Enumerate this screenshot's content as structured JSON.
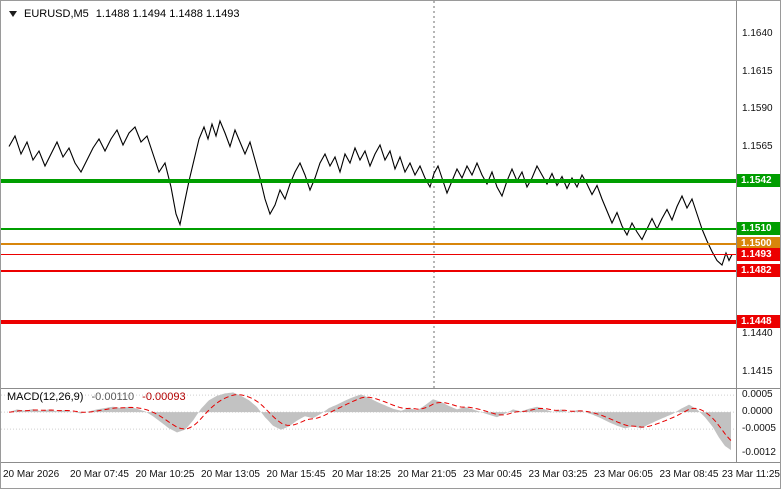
{
  "window": {
    "title_symbol": "EURUSD,M5",
    "ohlc": "1.1488 1.1494 1.1488 1.1493"
  },
  "colors": {
    "green": "#009E00",
    "red": "#EC0000",
    "orange": "#D8860B",
    "price_line": "#000000",
    "macd_hist": "#C2C2C2",
    "macd_signal": "#E60000",
    "grid": "#CFCFCF",
    "separator": "#6E6E6E",
    "border": "#8C8C8C"
  },
  "chart_data": {
    "type": "line",
    "title": "EURUSD,M5",
    "symbol": "EURUSD",
    "timeframe": "M5",
    "open": 1.1488,
    "high": 1.1494,
    "low": 1.1488,
    "close": 1.1493,
    "price_ylim": [
      1.1404,
      1.1662
    ],
    "y_ticks": [
      1.164,
      1.1615,
      1.159,
      1.1565,
      1.144,
      1.1415
    ],
    "levels": [
      {
        "price": 1.1542,
        "color": "green",
        "width": 4,
        "label": "1.1542"
      },
      {
        "price": 1.151,
        "color": "green",
        "width": 2,
        "label": "1.1510"
      },
      {
        "price": 1.15,
        "color": "orange",
        "width": 2,
        "label": "1.1500"
      },
      {
        "price": 1.1493,
        "color": "red",
        "width": 1,
        "label": "1.1493"
      },
      {
        "price": 1.1482,
        "color": "red",
        "width": 2,
        "label": "1.1482"
      },
      {
        "price": 1.1448,
        "color": "red",
        "width": 4,
        "label": "1.1448"
      }
    ],
    "day_separator_x": 433,
    "x_labels": [
      "20 Mar 2026",
      "20 Mar 07:45",
      "20 Mar 10:25",
      "20 Mar 13:05",
      "20 Mar 15:45",
      "20 Mar 18:25",
      "20 Mar 21:05",
      "23 Mar 00:45",
      "23 Mar 03:25",
      "23 Mar 06:05",
      "23 Mar 08:45",
      "23 Mar 11:25"
    ],
    "price_points": [
      [
        8,
        1.1565
      ],
      [
        14,
        1.1572
      ],
      [
        20,
        1.156
      ],
      [
        26,
        1.1568
      ],
      [
        32,
        1.1556
      ],
      [
        38,
        1.1562
      ],
      [
        44,
        1.1552
      ],
      [
        50,
        1.156
      ],
      [
        56,
        1.1568
      ],
      [
        62,
        1.1558
      ],
      [
        68,
        1.1564
      ],
      [
        74,
        1.1554
      ],
      [
        80,
        1.1548
      ],
      [
        86,
        1.1556
      ],
      [
        92,
        1.1564
      ],
      [
        98,
        1.157
      ],
      [
        104,
        1.1562
      ],
      [
        110,
        1.157
      ],
      [
        116,
        1.1576
      ],
      [
        122,
        1.1566
      ],
      [
        128,
        1.1574
      ],
      [
        134,
        1.1578
      ],
      [
        140,
        1.1568
      ],
      [
        146,
        1.1572
      ],
      [
        152,
        1.156
      ],
      [
        158,
        1.1548
      ],
      [
        164,
        1.1554
      ],
      [
        170,
        1.1538
      ],
      [
        175,
        1.152
      ],
      [
        179,
        1.1513
      ],
      [
        183,
        1.1526
      ],
      [
        188,
        1.1542
      ],
      [
        193,
        1.1556
      ],
      [
        198,
        1.157
      ],
      [
        203,
        1.1578
      ],
      [
        207,
        1.157
      ],
      [
        211,
        1.158
      ],
      [
        215,
        1.1572
      ],
      [
        219,
        1.1582
      ],
      [
        224,
        1.1574
      ],
      [
        229,
        1.1565
      ],
      [
        234,
        1.1576
      ],
      [
        239,
        1.1568
      ],
      [
        244,
        1.156
      ],
      [
        249,
        1.1568
      ],
      [
        254,
        1.1556
      ],
      [
        259,
        1.1544
      ],
      [
        264,
        1.153
      ],
      [
        269,
        1.152
      ],
      [
        274,
        1.1526
      ],
      [
        279,
        1.1536
      ],
      [
        284,
        1.153
      ],
      [
        289,
        1.154
      ],
      [
        294,
        1.1548
      ],
      [
        299,
        1.1554
      ],
      [
        304,
        1.1546
      ],
      [
        309,
        1.1536
      ],
      [
        314,
        1.1544
      ],
      [
        319,
        1.1554
      ],
      [
        324,
        1.156
      ],
      [
        329,
        1.1552
      ],
      [
        334,
        1.1558
      ],
      [
        339,
        1.1548
      ],
      [
        344,
        1.156
      ],
      [
        349,
        1.1554
      ],
      [
        354,
        1.1564
      ],
      [
        359,
        1.1556
      ],
      [
        364,
        1.1562
      ],
      [
        369,
        1.1552
      ],
      [
        374,
        1.156
      ],
      [
        379,
        1.1566
      ],
      [
        384,
        1.1556
      ],
      [
        389,
        1.1562
      ],
      [
        394,
        1.155
      ],
      [
        399,
        1.1558
      ],
      [
        404,
        1.1548
      ],
      [
        409,
        1.1554
      ],
      [
        414,
        1.1546
      ],
      [
        419,
        1.1552
      ],
      [
        424,
        1.1544
      ],
      [
        429,
        1.1538
      ],
      [
        433,
        1.1547
      ],
      [
        437,
        1.1552
      ],
      [
        441,
        1.1544
      ],
      [
        446,
        1.1534
      ],
      [
        451,
        1.1542
      ],
      [
        456,
        1.155
      ],
      [
        461,
        1.1544
      ],
      [
        466,
        1.1552
      ],
      [
        471,
        1.1546
      ],
      [
        476,
        1.1554
      ],
      [
        481,
        1.1546
      ],
      [
        486,
        1.154
      ],
      [
        491,
        1.1548
      ],
      [
        496,
        1.1538
      ],
      [
        501,
        1.1532
      ],
      [
        506,
        1.1542
      ],
      [
        511,
        1.155
      ],
      [
        516,
        1.1542
      ],
      [
        521,
        1.1548
      ],
      [
        526,
        1.1538
      ],
      [
        531,
        1.1544
      ],
      [
        536,
        1.1552
      ],
      [
        541,
        1.1546
      ],
      [
        546,
        1.154
      ],
      [
        551,
        1.1547
      ],
      [
        556,
        1.1539
      ],
      [
        561,
        1.1545
      ],
      [
        566,
        1.1537
      ],
      [
        571,
        1.1544
      ],
      [
        576,
        1.1538
      ],
      [
        581,
        1.1546
      ],
      [
        586,
        1.154
      ],
      [
        591,
        1.1533
      ],
      [
        596,
        1.1539
      ],
      [
        601,
        1.153
      ],
      [
        606,
        1.1522
      ],
      [
        611,
        1.1514
      ],
      [
        616,
        1.1521
      ],
      [
        621,
        1.1512
      ],
      [
        626,
        1.1506
      ],
      [
        631,
        1.1514
      ],
      [
        636,
        1.1508
      ],
      [
        641,
        1.1503
      ],
      [
        646,
        1.151
      ],
      [
        651,
        1.1517
      ],
      [
        656,
        1.151
      ],
      [
        661,
        1.1517
      ],
      [
        666,
        1.1523
      ],
      [
        671,
        1.1516
      ],
      [
        676,
        1.1525
      ],
      [
        681,
        1.1532
      ],
      [
        686,
        1.1524
      ],
      [
        691,
        1.153
      ],
      [
        696,
        1.152
      ],
      [
        701,
        1.151
      ],
      [
        706,
        1.1502
      ],
      [
        711,
        1.1495
      ],
      [
        716,
        1.1489
      ],
      [
        721,
        1.1486
      ],
      [
        725,
        1.1494
      ],
      [
        728,
        1.1489
      ],
      [
        731,
        1.1493
      ]
    ],
    "macd": {
      "label": "MACD(12,26,9)",
      "main_value": "-0.00110",
      "signal_value": "-0.00093",
      "ylim": [
        -0.00147,
        0.00071
      ],
      "y_ticks": [
        0.0005,
        0.0,
        -0.0005
      ],
      "edge_tick": -0.0012,
      "points": [
        [
          8,
          0.0
        ],
        [
          16,
          8e-05
        ],
        [
          24,
          4e-05
        ],
        [
          32,
          9e-05
        ],
        [
          40,
          3e-05
        ],
        [
          48,
          8e-05
        ],
        [
          56,
          2e-05
        ],
        [
          64,
          6e-05
        ],
        [
          72,
          0.0
        ],
        [
          80,
          -4e-05
        ],
        [
          88,
          2e-05
        ],
        [
          96,
          8e-05
        ],
        [
          104,
          0.00012
        ],
        [
          112,
          0.00016
        ],
        [
          120,
          0.00012
        ],
        [
          128,
          0.00016
        ],
        [
          136,
          0.0001
        ],
        [
          144,
          2e-05
        ],
        [
          152,
          -0.00012
        ],
        [
          160,
          -0.0003
        ],
        [
          168,
          -0.00048
        ],
        [
          176,
          -0.0006
        ],
        [
          184,
          -0.00052
        ],
        [
          192,
          -0.00025
        ],
        [
          200,
          0.0001
        ],
        [
          208,
          0.00035
        ],
        [
          216,
          0.00048
        ],
        [
          224,
          0.00055
        ],
        [
          232,
          0.00058
        ],
        [
          240,
          0.00048
        ],
        [
          248,
          0.00035
        ],
        [
          256,
          0.00015
        ],
        [
          264,
          -0.00015
        ],
        [
          272,
          -0.0004
        ],
        [
          280,
          -0.00052
        ],
        [
          288,
          -0.00042
        ],
        [
          296,
          -0.00025
        ],
        [
          304,
          -0.00012
        ],
        [
          312,
          -0.00018
        ],
        [
          320,
          -5e-05
        ],
        [
          328,
          0.00012
        ],
        [
          336,
          0.00022
        ],
        [
          344,
          0.00034
        ],
        [
          352,
          0.00044
        ],
        [
          360,
          0.00052
        ],
        [
          368,
          0.00042
        ],
        [
          376,
          0.0003
        ],
        [
          384,
          0.0002
        ],
        [
          392,
          0.0001
        ],
        [
          400,
          4e-05
        ],
        [
          408,
          0.00012
        ],
        [
          416,
          5e-05
        ],
        [
          424,
          0.0002
        ],
        [
          432,
          0.00038
        ],
        [
          440,
          0.0003
        ],
        [
          448,
          0.00018
        ],
        [
          456,
          8e-05
        ],
        [
          464,
          0.00015
        ],
        [
          472,
          8e-05
        ],
        [
          480,
          0.0
        ],
        [
          488,
          -8e-05
        ],
        [
          496,
          -0.00015
        ],
        [
          504,
          -5e-05
        ],
        [
          512,
          8e-05
        ],
        [
          520,
          2e-05
        ],
        [
          528,
          0.0001
        ],
        [
          536,
          0.00016
        ],
        [
          544,
          8e-05
        ],
        [
          552,
          0.0
        ],
        [
          560,
          8e-05
        ],
        [
          568,
          -2e-05
        ],
        [
          576,
          6e-05
        ],
        [
          584,
          0.0
        ],
        [
          592,
          -8e-05
        ],
        [
          600,
          -0.00018
        ],
        [
          608,
          -0.0003
        ],
        [
          616,
          -0.0004
        ],
        [
          624,
          -0.00048
        ],
        [
          632,
          -0.00042
        ],
        [
          640,
          -0.00048
        ],
        [
          648,
          -0.00036
        ],
        [
          656,
          -0.00025
        ],
        [
          664,
          -0.00015
        ],
        [
          672,
          -5e-05
        ],
        [
          680,
          0.0001
        ],
        [
          688,
          0.00022
        ],
        [
          696,
          8e-05
        ],
        [
          704,
          -0.00015
        ],
        [
          712,
          -0.00045
        ],
        [
          718,
          -0.00075
        ],
        [
          724,
          -0.001
        ],
        [
          730,
          -0.00112
        ]
      ]
    }
  }
}
